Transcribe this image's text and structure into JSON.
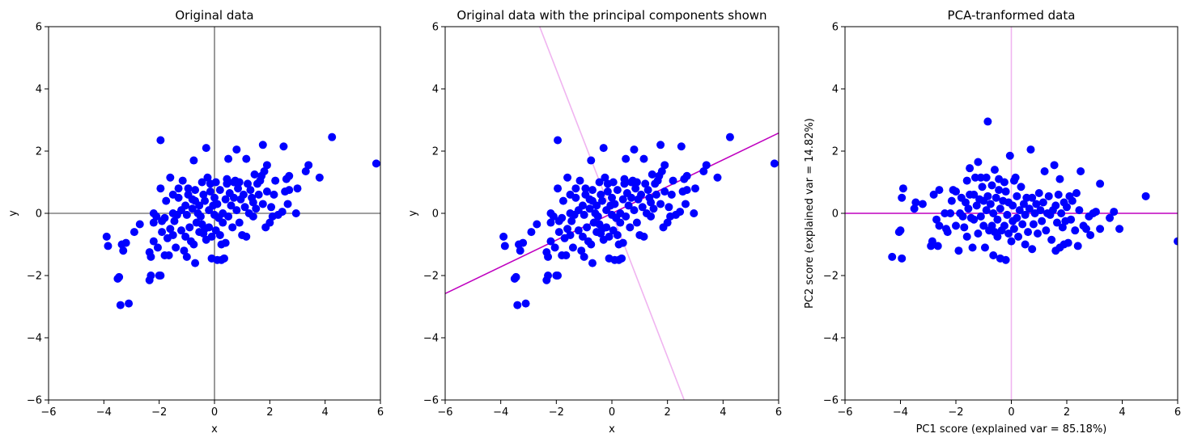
{
  "chart_data": [
    {
      "type": "scatter",
      "title": "Original data",
      "xlabel": "x",
      "ylabel": "y",
      "xlim": [
        -6,
        6
      ],
      "ylim": [
        -6,
        6
      ],
      "xticks": [
        "−6",
        "−4",
        "−2",
        "0",
        "2",
        "4",
        "6"
      ],
      "yticks": [
        "−6",
        "−4",
        "−2",
        "0",
        "2",
        "4",
        "6"
      ],
      "grid": false,
      "point_color": "#0000ff",
      "reference_lines": [
        {
          "orientation": "vertical",
          "at": 0,
          "color": "#808080"
        },
        {
          "orientation": "horizontal",
          "at": 0,
          "color": "#808080"
        }
      ],
      "points": [
        [
          -3.9,
          -0.75
        ],
        [
          -3.85,
          -1.05
        ],
        [
          -3.5,
          -2.1
        ],
        [
          -3.45,
          -2.05
        ],
        [
          -3.4,
          -2.95
        ],
        [
          -3.35,
          -1.0
        ],
        [
          -3.3,
          -1.2
        ],
        [
          -3.2,
          -0.95
        ],
        [
          -3.1,
          -2.9
        ],
        [
          -2.9,
          -0.6
        ],
        [
          -2.7,
          -0.35
        ],
        [
          -2.35,
          -2.15
        ],
        [
          -2.35,
          -1.25
        ],
        [
          -2.3,
          -2.0
        ],
        [
          -2.3,
          -1.4
        ],
        [
          -2.2,
          -0.9
        ],
        [
          -2.2,
          -0.3
        ],
        [
          -2.2,
          0.0
        ],
        [
          -2.1,
          -0.1
        ],
        [
          -2.05,
          -1.1
        ],
        [
          -2.0,
          -2.0
        ],
        [
          -1.95,
          -2.0
        ],
        [
          -1.95,
          0.8
        ],
        [
          -1.95,
          2.35
        ],
        [
          -1.9,
          -0.6
        ],
        [
          -1.9,
          -0.25
        ],
        [
          -1.8,
          -1.35
        ],
        [
          -1.8,
          -0.15
        ],
        [
          -1.75,
          0.4
        ],
        [
          -1.7,
          -0.8
        ],
        [
          -1.65,
          -1.35
        ],
        [
          -1.6,
          -0.5
        ],
        [
          -1.6,
          1.15
        ],
        [
          -1.5,
          -0.7
        ],
        [
          -1.5,
          0.0
        ],
        [
          -1.5,
          0.6
        ],
        [
          -1.45,
          -0.25
        ],
        [
          -1.4,
          -1.1
        ],
        [
          -1.35,
          -0.05
        ],
        [
          -1.3,
          0.5
        ],
        [
          -1.3,
          0.8
        ],
        [
          -1.2,
          0.1
        ],
        [
          -1.2,
          -0.55
        ],
        [
          -1.15,
          1.05
        ],
        [
          -1.1,
          -1.2
        ],
        [
          -1.05,
          0.25
        ],
        [
          -1.05,
          -0.75
        ],
        [
          -1.0,
          -1.4
        ],
        [
          -1.0,
          -0.05
        ],
        [
          -0.95,
          0.6
        ],
        [
          -0.95,
          0.8
        ],
        [
          -0.9,
          -0.45
        ],
        [
          -0.85,
          -0.9
        ],
        [
          -0.8,
          0.45
        ],
        [
          -0.8,
          0.15
        ],
        [
          -0.75,
          -1.0
        ],
        [
          -0.75,
          1.7
        ],
        [
          -0.7,
          0.4
        ],
        [
          -0.7,
          0.75
        ],
        [
          -0.7,
          -1.6
        ],
        [
          -0.65,
          -0.3
        ],
        [
          -0.6,
          0.0
        ],
        [
          -0.55,
          -0.6
        ],
        [
          -0.55,
          0.25
        ],
        [
          -0.5,
          -0.1
        ],
        [
          -0.45,
          -0.35
        ],
        [
          -0.45,
          1.0
        ],
        [
          -0.4,
          0.6
        ],
        [
          -0.4,
          -0.65
        ],
        [
          -0.35,
          0.4
        ],
        [
          -0.35,
          -0.5
        ],
        [
          -0.3,
          2.1
        ],
        [
          -0.3,
          -0.85
        ],
        [
          -0.25,
          1.15
        ],
        [
          -0.2,
          0.1
        ],
        [
          -0.2,
          -0.45
        ],
        [
          -0.15,
          0.7
        ],
        [
          -0.15,
          0.95
        ],
        [
          -0.1,
          -1.45
        ],
        [
          -0.1,
          -0.75
        ],
        [
          -0.05,
          0.25
        ],
        [
          0.0,
          -0.05
        ],
        [
          0.0,
          0.5
        ],
        [
          0.05,
          -0.55
        ],
        [
          0.05,
          1.0
        ],
        [
          0.1,
          -1.5
        ],
        [
          0.1,
          0.3
        ],
        [
          0.15,
          -0.15
        ],
        [
          0.2,
          -0.7
        ],
        [
          0.2,
          0.75
        ],
        [
          0.25,
          -1.0
        ],
        [
          0.25,
          -1.5
        ],
        [
          0.3,
          0.0
        ],
        [
          0.3,
          -0.3
        ],
        [
          0.35,
          -1.45
        ],
        [
          0.4,
          0.45
        ],
        [
          0.4,
          -0.95
        ],
        [
          0.45,
          0.95
        ],
        [
          0.45,
          1.1
        ],
        [
          0.5,
          -0.1
        ],
        [
          0.5,
          1.75
        ],
        [
          0.55,
          0.65
        ],
        [
          0.6,
          0.25
        ],
        [
          0.65,
          -0.45
        ],
        [
          0.7,
          0.5
        ],
        [
          0.7,
          1.0
        ],
        [
          0.75,
          1.05
        ],
        [
          0.8,
          0.1
        ],
        [
          0.8,
          2.05
        ],
        [
          0.85,
          0.8
        ],
        [
          0.9,
          -0.3
        ],
        [
          0.9,
          1.0
        ],
        [
          0.95,
          0.45
        ],
        [
          1.0,
          -0.7
        ],
        [
          1.05,
          0.6
        ],
        [
          1.1,
          0.2
        ],
        [
          1.15,
          -0.75
        ],
        [
          1.15,
          1.75
        ],
        [
          1.2,
          0.95
        ],
        [
          1.25,
          0.0
        ],
        [
          1.3,
          0.75
        ],
        [
          1.35,
          0.5
        ],
        [
          1.4,
          0.35
        ],
        [
          1.4,
          -0.1
        ],
        [
          1.45,
          1.25
        ],
        [
          1.5,
          0.15
        ],
        [
          1.55,
          0.95
        ],
        [
          1.6,
          0.6
        ],
        [
          1.65,
          1.05
        ],
        [
          1.7,
          1.2
        ],
        [
          1.75,
          0.3
        ],
        [
          1.75,
          2.2
        ],
        [
          1.8,
          1.35
        ],
        [
          1.85,
          -0.45
        ],
        [
          1.9,
          1.55
        ],
        [
          1.9,
          0.7
        ],
        [
          2.0,
          -0.3
        ],
        [
          2.05,
          0.2
        ],
        [
          2.1,
          -0.1
        ],
        [
          2.15,
          0.6
        ],
        [
          2.2,
          1.05
        ],
        [
          2.3,
          -0.05
        ],
        [
          2.45,
          0.05
        ],
        [
          2.5,
          2.15
        ],
        [
          2.55,
          0.7
        ],
        [
          2.6,
          1.1
        ],
        [
          2.65,
          0.3
        ],
        [
          2.7,
          1.2
        ],
        [
          2.7,
          0.75
        ],
        [
          2.95,
          0.0
        ],
        [
          3.0,
          0.8
        ],
        [
          3.3,
          1.35
        ],
        [
          3.4,
          1.55
        ],
        [
          3.8,
          1.15
        ],
        [
          4.25,
          2.45
        ],
        [
          5.85,
          1.6
        ]
      ]
    },
    {
      "type": "scatter",
      "title": "Original data with the principal components shown",
      "xlabel": "x",
      "ylabel": "y",
      "xlim": [
        -6,
        6
      ],
      "ylim": [
        -6,
        6
      ],
      "xticks": [
        "−6",
        "−4",
        "−2",
        "0",
        "2",
        "4",
        "6"
      ],
      "yticks": [
        "−6",
        "−4",
        "−2",
        "0",
        "2",
        "4",
        "6"
      ],
      "grid": false,
      "point_color": "#0000ff",
      "reference_lines": [
        {
          "type": "line",
          "from": [
            -6,
            -2.58
          ],
          "to": [
            6,
            2.58
          ],
          "color": "#bf00bf"
        },
        {
          "type": "line",
          "from": [
            -2.6,
            6
          ],
          "to": [
            2.6,
            -6
          ],
          "color": "#f0b4f0"
        }
      ],
      "points_same_as_panel": 0
    },
    {
      "type": "scatter",
      "title": "PCA-tranformed data",
      "xlabel": "PC1 score (explained var =  85.18%)",
      "ylabel": "PC2 score (explained var =  14.82%)",
      "xlim": [
        -6,
        6
      ],
      "ylim": [
        -6,
        6
      ],
      "xticks": [
        "−6",
        "−4",
        "−2",
        "0",
        "2",
        "4",
        "6"
      ],
      "yticks": [
        "−6",
        "−4",
        "−2",
        "0",
        "2",
        "4",
        "6"
      ],
      "grid": false,
      "point_color": "#0000ff",
      "reference_lines": [
        {
          "orientation": "horizontal",
          "at": 0,
          "color": "#bf00bf"
        },
        {
          "orientation": "vertical",
          "at": 0,
          "color": "#f0b4f0"
        }
      ],
      "points": [
        [
          -4.3,
          -1.4
        ],
        [
          -4.05,
          -0.6
        ],
        [
          -4.0,
          -0.55
        ],
        [
          -3.95,
          -1.45
        ],
        [
          -3.95,
          0.5
        ],
        [
          -3.9,
          0.8
        ],
        [
          -3.5,
          0.15
        ],
        [
          -3.45,
          0.35
        ],
        [
          -3.2,
          0.3
        ],
        [
          -2.9,
          -1.05
        ],
        [
          -2.85,
          -0.9
        ],
        [
          -2.8,
          0.6
        ],
        [
          -2.7,
          -0.2
        ],
        [
          -2.65,
          -1.05
        ],
        [
          -2.6,
          -0.4
        ],
        [
          -2.6,
          0.75
        ],
        [
          -2.4,
          0.0
        ],
        [
          -2.35,
          -0.5
        ],
        [
          -2.3,
          -0.6
        ],
        [
          -2.2,
          0.0
        ],
        [
          -2.15,
          0.4
        ],
        [
          -2.1,
          0.75
        ],
        [
          -2.0,
          0.7
        ],
        [
          -2.0,
          -0.4
        ],
        [
          -1.9,
          -1.2
        ],
        [
          -1.85,
          0.0
        ],
        [
          -1.8,
          0.5
        ],
        [
          -1.75,
          -0.1
        ],
        [
          -1.7,
          -0.45
        ],
        [
          -1.65,
          0.35
        ],
        [
          -1.6,
          1.05
        ],
        [
          -1.6,
          -0.75
        ],
        [
          -1.55,
          0.15
        ],
        [
          -1.5,
          1.45
        ],
        [
          -1.5,
          0.6
        ],
        [
          -1.45,
          -0.15
        ],
        [
          -1.4,
          -1.1
        ],
        [
          -1.35,
          0.6
        ],
        [
          -1.35,
          -0.2
        ],
        [
          -1.3,
          1.15
        ],
        [
          -1.25,
          0.25
        ],
        [
          -1.2,
          -0.65
        ],
        [
          -1.2,
          1.65
        ],
        [
          -1.15,
          0.45
        ],
        [
          -1.1,
          1.15
        ],
        [
          -1.1,
          -0.1
        ],
        [
          -1.05,
          0.85
        ],
        [
          -1.0,
          -0.4
        ],
        [
          -1.0,
          0.4
        ],
        [
          -0.95,
          -1.1
        ],
        [
          -0.9,
          1.15
        ],
        [
          -0.9,
          0.1
        ],
        [
          -0.85,
          2.95
        ],
        [
          -0.85,
          0.55
        ],
        [
          -0.8,
          -0.55
        ],
        [
          -0.75,
          0.3
        ],
        [
          -0.7,
          0.9
        ],
        [
          -0.7,
          -0.4
        ],
        [
          -0.65,
          -1.35
        ],
        [
          -0.65,
          0.0
        ],
        [
          -0.6,
          1.4
        ],
        [
          -0.6,
          -0.6
        ],
        [
          -0.55,
          0.5
        ],
        [
          -0.5,
          -0.2
        ],
        [
          -0.5,
          -0.75
        ],
        [
          -0.45,
          0.75
        ],
        [
          -0.45,
          1.1
        ],
        [
          -0.4,
          -1.45
        ],
        [
          -0.4,
          0.15
        ],
        [
          -0.35,
          -0.55
        ],
        [
          -0.3,
          0.4
        ],
        [
          -0.25,
          1.0
        ],
        [
          -0.25,
          -0.4
        ],
        [
          -0.2,
          -1.5
        ],
        [
          -0.2,
          0.7
        ],
        [
          -0.15,
          -0.05
        ],
        [
          -0.1,
          0.35
        ],
        [
          -0.1,
          -0.65
        ],
        [
          -0.05,
          1.85
        ],
        [
          0.0,
          -0.9
        ],
        [
          0.05,
          0.25
        ],
        [
          0.05,
          -0.25
        ],
        [
          0.1,
          1.05
        ],
        [
          0.1,
          -0.5
        ],
        [
          0.15,
          1.15
        ],
        [
          0.2,
          -0.15
        ],
        [
          0.2,
          0.55
        ],
        [
          0.25,
          -0.75
        ],
        [
          0.3,
          0.1
        ],
        [
          0.35,
          0.85
        ],
        [
          0.4,
          -0.35
        ],
        [
          0.45,
          0.3
        ],
        [
          0.5,
          -0.05
        ],
        [
          0.5,
          -1.0
        ],
        [
          0.55,
          0.5
        ],
        [
          0.6,
          -0.6
        ],
        [
          0.65,
          0.15
        ],
        [
          0.7,
          2.05
        ],
        [
          0.75,
          0.5
        ],
        [
          0.75,
          -1.15
        ],
        [
          0.8,
          -0.35
        ],
        [
          0.85,
          0.0
        ],
        [
          0.9,
          0.3
        ],
        [
          0.95,
          -0.65
        ],
        [
          1.0,
          0.65
        ],
        [
          1.05,
          0.1
        ],
        [
          1.1,
          -0.25
        ],
        [
          1.15,
          0.35
        ],
        [
          1.2,
          1.35
        ],
        [
          1.25,
          -0.55
        ],
        [
          1.3,
          0.0
        ],
        [
          1.35,
          0.55
        ],
        [
          1.4,
          -0.05
        ],
        [
          1.45,
          -0.85
        ],
        [
          1.5,
          0.1
        ],
        [
          1.55,
          1.55
        ],
        [
          1.6,
          0.25
        ],
        [
          1.6,
          -1.2
        ],
        [
          1.65,
          -0.3
        ],
        [
          1.7,
          0.6
        ],
        [
          1.75,
          -1.1
        ],
        [
          1.75,
          1.1
        ],
        [
          1.8,
          0.0
        ],
        [
          1.85,
          -0.45
        ],
        [
          1.9,
          0.35
        ],
        [
          1.9,
          -1.0
        ],
        [
          1.95,
          -0.25
        ],
        [
          2.0,
          0.2
        ],
        [
          2.05,
          -0.95
        ],
        [
          2.1,
          0.55
        ],
        [
          2.15,
          -0.2
        ],
        [
          2.2,
          0.4
        ],
        [
          2.3,
          -0.55
        ],
        [
          2.35,
          0.65
        ],
        [
          2.4,
          -1.05
        ],
        [
          2.45,
          0.1
        ],
        [
          2.5,
          1.35
        ],
        [
          2.6,
          -0.4
        ],
        [
          2.7,
          -0.5
        ],
        [
          2.8,
          -0.1
        ],
        [
          2.85,
          -0.7
        ],
        [
          2.95,
          0.0
        ],
        [
          3.05,
          0.05
        ],
        [
          3.2,
          0.95
        ],
        [
          3.2,
          -0.5
        ],
        [
          3.55,
          -0.15
        ],
        [
          3.7,
          0.05
        ],
        [
          3.9,
          -0.5
        ],
        [
          4.85,
          0.55
        ],
        [
          6.0,
          -0.9
        ]
      ]
    }
  ]
}
